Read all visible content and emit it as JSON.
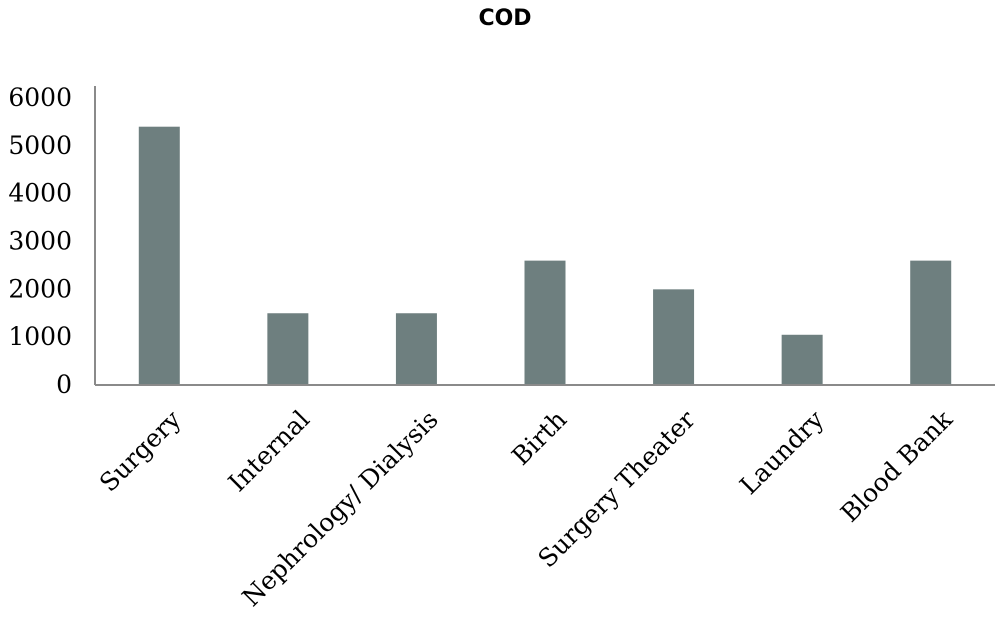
{
  "chart_data": {
    "type": "bar",
    "title": "COD",
    "xlabel": "",
    "ylabel": "",
    "categories": [
      "Surgery",
      "Internal",
      "Nephrology/ Dialysis",
      "Birth",
      "Surgery Theater",
      "Laundry",
      "Blood Bank"
    ],
    "values": [
      5400,
      1500,
      1500,
      2600,
      2000,
      1050,
      2600
    ],
    "ylim": [
      0,
      6000
    ],
    "yticks": [
      "0",
      "1000",
      "2000",
      "3000",
      "4000",
      "5000",
      "6000"
    ],
    "grid": false,
    "legend": "none",
    "colors": {
      "bar": "#6e7f7f",
      "axis": "#8a8a8a",
      "text": "#000000"
    }
  }
}
